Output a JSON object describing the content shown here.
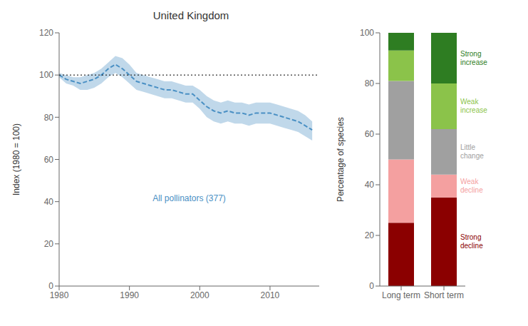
{
  "chart_data": [
    {
      "type": "line",
      "title": "United Kingdom",
      "x": [
        1980,
        1981,
        1982,
        1983,
        1984,
        1985,
        1986,
        1987,
        1988,
        1989,
        1990,
        1991,
        1992,
        1993,
        1994,
        1995,
        1996,
        1997,
        1998,
        1999,
        2000,
        2001,
        2002,
        2003,
        2004,
        2005,
        2006,
        2007,
        2008,
        2009,
        2010,
        2011,
        2012,
        2013,
        2014,
        2015,
        2016
      ],
      "series": [
        {
          "name": "All pollinators (377)",
          "color": "#4a90c4",
          "line_style": "dashed",
          "values": [
            100,
            98,
            97,
            96,
            97,
            98,
            100,
            103,
            105,
            103,
            100,
            97,
            96,
            95,
            94,
            93,
            93,
            92,
            91,
            91,
            88,
            85,
            83,
            82,
            83,
            82,
            82,
            81,
            82,
            82,
            82,
            81,
            80,
            79,
            78,
            76,
            74
          ],
          "upper": [
            101,
            100,
            99,
            99,
            100,
            101,
            103,
            106,
            109,
            108,
            105,
            101,
            100,
            99,
            98,
            97,
            97,
            96,
            95,
            95,
            93,
            90,
            88,
            87,
            88,
            87,
            87,
            86,
            87,
            87,
            87,
            86,
            85,
            84,
            83,
            81,
            78
          ],
          "lower": [
            99,
            96,
            95,
            93,
            93,
            94,
            96,
            99,
            101,
            99,
            96,
            93,
            92,
            91,
            90,
            89,
            89,
            88,
            87,
            87,
            84,
            80,
            78,
            77,
            78,
            77,
            77,
            76,
            77,
            77,
            77,
            76,
            75,
            74,
            73,
            71,
            69
          ]
        }
      ],
      "reference_y": 100,
      "y_label": "Index (1980 = 100)",
      "xlim": [
        1980,
        2017
      ],
      "xticks": [
        1980,
        1990,
        2000,
        2010
      ],
      "ylim": [
        0,
        120
      ],
      "yticks": [
        0,
        20,
        40,
        60,
        80,
        100,
        120
      ],
      "grid": false
    },
    {
      "type": "bar",
      "stacked": true,
      "categories": [
        "Long term",
        "Short term"
      ],
      "series": [
        {
          "name": "Strong\ndecline",
          "color": "#8B0000",
          "values": [
            25,
            35
          ]
        },
        {
          "name": "Weak\ndecline",
          "color": "#F4A0A0",
          "values": [
            25,
            9
          ]
        },
        {
          "name": "Little\nchange",
          "color": "#A0A0A0",
          "values": [
            31,
            18
          ]
        },
        {
          "name": "Weak\nincrease",
          "color": "#8BC34A",
          "values": [
            12,
            18
          ]
        },
        {
          "name": "Strong\nincrease",
          "color": "#2E7D22",
          "values": [
            7,
            20
          ]
        }
      ],
      "y_label": "Percentage of species",
      "ylim": [
        0,
        100
      ],
      "yticks": [
        0,
        20,
        40,
        60,
        80,
        100
      ],
      "grid": false
    }
  ]
}
